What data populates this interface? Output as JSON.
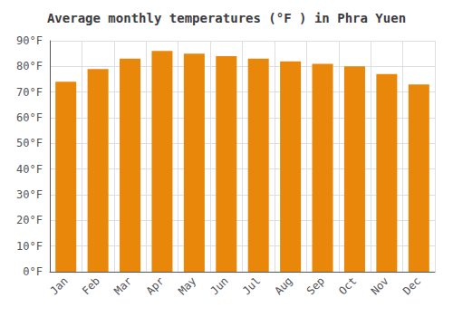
{
  "chart_data": {
    "type": "bar",
    "title": "Average monthly temperatures (°F ) in Phra Yuen",
    "categories": [
      "Jan",
      "Feb",
      "Mar",
      "Apr",
      "May",
      "Jun",
      "Jul",
      "Aug",
      "Sep",
      "Oct",
      "Nov",
      "Dec"
    ],
    "values": [
      74,
      79,
      83,
      86,
      85,
      84,
      83,
      82,
      81,
      80,
      77,
      73
    ],
    "color": "#E8870A",
    "ylim": [
      0,
      90
    ],
    "yticks": [
      {
        "value": 0,
        "label": "0°F"
      },
      {
        "value": 10,
        "label": "10°F"
      },
      {
        "value": 20,
        "label": "20°F"
      },
      {
        "value": 30,
        "label": "30°F"
      },
      {
        "value": 40,
        "label": "40°F"
      },
      {
        "value": 50,
        "label": "50°F"
      },
      {
        "value": 60,
        "label": "60°F"
      },
      {
        "value": 70,
        "label": "70°F"
      },
      {
        "value": 80,
        "label": "80°F"
      },
      {
        "value": 90,
        "label": "90°F"
      }
    ],
    "grid": true
  }
}
